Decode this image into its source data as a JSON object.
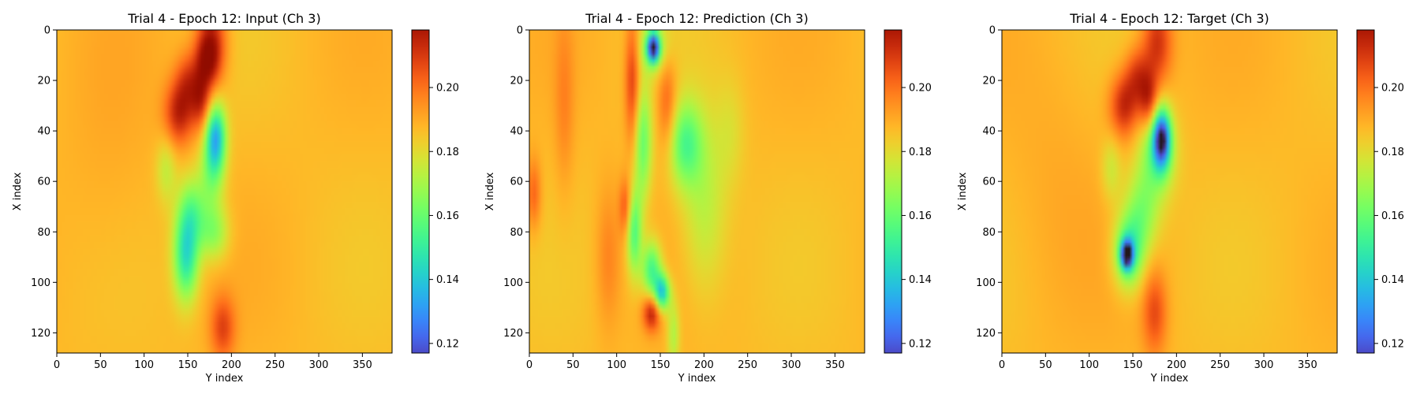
{
  "figure": {
    "colormap": "turbo",
    "colors": {
      "background": "#ffffff",
      "axis": "#000000",
      "field_base": "#f2b23a"
    }
  },
  "chart_data": [
    {
      "type": "heatmap",
      "title": "Trial 4 - Epoch 12: Input (Ch 3)",
      "xlabel": "Y index",
      "ylabel": "X index",
      "x_range": [
        0,
        384
      ],
      "y_range": [
        0,
        128
      ],
      "y_inverted": true,
      "x_ticks": [
        0,
        50,
        100,
        150,
        200,
        250,
        300,
        350
      ],
      "y_ticks": [
        0,
        20,
        40,
        60,
        80,
        100,
        120
      ],
      "colorbar": {
        "range": [
          0.117,
          0.218
        ],
        "ticks": [
          0.12,
          0.14,
          0.16,
          0.18,
          0.2
        ],
        "tick_labels": [
          "0.12",
          "0.14",
          "0.16",
          "0.18",
          "0.20"
        ]
      },
      "background_value": 0.187,
      "features": [
        {
          "x": 178,
          "y": 4,
          "sx": 12,
          "sy": 12,
          "value": 0.212
        },
        {
          "x": 172,
          "y": 12,
          "sx": 10,
          "sy": 8,
          "value": 0.21
        },
        {
          "x": 140,
          "y": 33,
          "sx": 12,
          "sy": 9,
          "value": 0.214
        },
        {
          "x": 150,
          "y": 20,
          "sx": 10,
          "sy": 8,
          "value": 0.205
        },
        {
          "x": 165,
          "y": 28,
          "sx": 8,
          "sy": 8,
          "value": 0.21
        },
        {
          "x": 182,
          "y": 42,
          "sx": 8,
          "sy": 9,
          "value": 0.14
        },
        {
          "x": 178,
          "y": 56,
          "sx": 10,
          "sy": 10,
          "value": 0.166
        },
        {
          "x": 148,
          "y": 90,
          "sx": 10,
          "sy": 12,
          "value": 0.147
        },
        {
          "x": 155,
          "y": 72,
          "sx": 12,
          "sy": 10,
          "value": 0.163
        },
        {
          "x": 180,
          "y": 80,
          "sx": 12,
          "sy": 8,
          "value": 0.165
        },
        {
          "x": 125,
          "y": 55,
          "sx": 8,
          "sy": 9,
          "value": 0.174
        },
        {
          "x": 190,
          "y": 118,
          "sx": 10,
          "sy": 9,
          "value": 0.207
        },
        {
          "x": 60,
          "y": 60,
          "sx": 40,
          "sy": 40,
          "value": 0.19
        }
      ]
    },
    {
      "type": "heatmap",
      "title": "Trial 4 - Epoch 12: Prediction (Ch 3)",
      "xlabel": "Y index",
      "ylabel": "X index",
      "x_range": [
        0,
        384
      ],
      "y_range": [
        0,
        128
      ],
      "y_inverted": true,
      "x_ticks": [
        0,
        50,
        100,
        150,
        200,
        250,
        300,
        350
      ],
      "y_ticks": [
        0,
        20,
        40,
        60,
        80,
        100,
        120
      ],
      "colorbar": {
        "range": [
          0.117,
          0.218
        ],
        "ticks": [
          0.12,
          0.14,
          0.16,
          0.18,
          0.2
        ],
        "tick_labels": [
          "0.12",
          "0.14",
          "0.16",
          "0.18",
          "0.20"
        ]
      },
      "background_value": 0.187,
      "features": [
        {
          "x": 142,
          "y": 7,
          "sx": 5,
          "sy": 4,
          "value": 0.123
        },
        {
          "x": 142,
          "y": 7,
          "sx": 12,
          "sy": 7,
          "value": 0.168
        },
        {
          "x": 118,
          "y": 20,
          "sx": 6,
          "sy": 18,
          "value": 0.21
        },
        {
          "x": 130,
          "y": 45,
          "sx": 7,
          "sy": 16,
          "value": 0.16
        },
        {
          "x": 178,
          "y": 45,
          "sx": 14,
          "sy": 12,
          "value": 0.158
        },
        {
          "x": 158,
          "y": 30,
          "sx": 8,
          "sy": 14,
          "value": 0.205
        },
        {
          "x": 120,
          "y": 80,
          "sx": 6,
          "sy": 12,
          "value": 0.155
        },
        {
          "x": 110,
          "y": 70,
          "sx": 5,
          "sy": 8,
          "value": 0.205
        },
        {
          "x": 140,
          "y": 95,
          "sx": 8,
          "sy": 8,
          "value": 0.152
        },
        {
          "x": 152,
          "y": 104,
          "sx": 6,
          "sy": 5,
          "value": 0.14
        },
        {
          "x": 140,
          "y": 112,
          "sx": 7,
          "sy": 5,
          "value": 0.216
        },
        {
          "x": 165,
          "y": 120,
          "sx": 5,
          "sy": 10,
          "value": 0.17
        },
        {
          "x": 200,
          "y": 70,
          "sx": 18,
          "sy": 25,
          "value": 0.172
        },
        {
          "x": 90,
          "y": 90,
          "sx": 10,
          "sy": 20,
          "value": 0.197
        },
        {
          "x": 40,
          "y": 30,
          "sx": 8,
          "sy": 25,
          "value": 0.196
        },
        {
          "x": 5,
          "y": 65,
          "sx": 6,
          "sy": 10,
          "value": 0.203
        },
        {
          "x": 230,
          "y": 40,
          "sx": 12,
          "sy": 15,
          "value": 0.18
        }
      ]
    },
    {
      "type": "heatmap",
      "title": "Trial 4 - Epoch 12: Target (Ch 3)",
      "xlabel": "Y index",
      "ylabel": "X index",
      "x_range": [
        0,
        384
      ],
      "y_range": [
        0,
        128
      ],
      "y_inverted": true,
      "x_ticks": [
        0,
        50,
        100,
        150,
        200,
        250,
        300,
        350
      ],
      "y_ticks": [
        0,
        20,
        40,
        60,
        80,
        100,
        120
      ],
      "colorbar": {
        "range": [
          0.117,
          0.218
        ],
        "ticks": [
          0.12,
          0.14,
          0.16,
          0.18,
          0.2
        ],
        "tick_labels": [
          "0.12",
          "0.14",
          "0.16",
          "0.18",
          "0.20"
        ]
      },
      "background_value": 0.187,
      "features": [
        {
          "x": 178,
          "y": 5,
          "sx": 12,
          "sy": 12,
          "value": 0.212
        },
        {
          "x": 140,
          "y": 30,
          "sx": 12,
          "sy": 9,
          "value": 0.214
        },
        {
          "x": 155,
          "y": 18,
          "sx": 10,
          "sy": 8,
          "value": 0.206
        },
        {
          "x": 168,
          "y": 28,
          "sx": 8,
          "sy": 8,
          "value": 0.212
        },
        {
          "x": 183,
          "y": 43,
          "sx": 7,
          "sy": 8,
          "value": 0.125
        },
        {
          "x": 178,
          "y": 48,
          "sx": 14,
          "sy": 12,
          "value": 0.16
        },
        {
          "x": 143,
          "y": 89,
          "sx": 5,
          "sy": 4,
          "value": 0.125
        },
        {
          "x": 145,
          "y": 88,
          "sx": 12,
          "sy": 10,
          "value": 0.152
        },
        {
          "x": 160,
          "y": 72,
          "sx": 14,
          "sy": 12,
          "value": 0.165
        },
        {
          "x": 125,
          "y": 55,
          "sx": 8,
          "sy": 9,
          "value": 0.175
        },
        {
          "x": 175,
          "y": 112,
          "sx": 10,
          "sy": 12,
          "value": 0.206
        },
        {
          "x": 60,
          "y": 60,
          "sx": 40,
          "sy": 40,
          "value": 0.19
        }
      ]
    }
  ]
}
